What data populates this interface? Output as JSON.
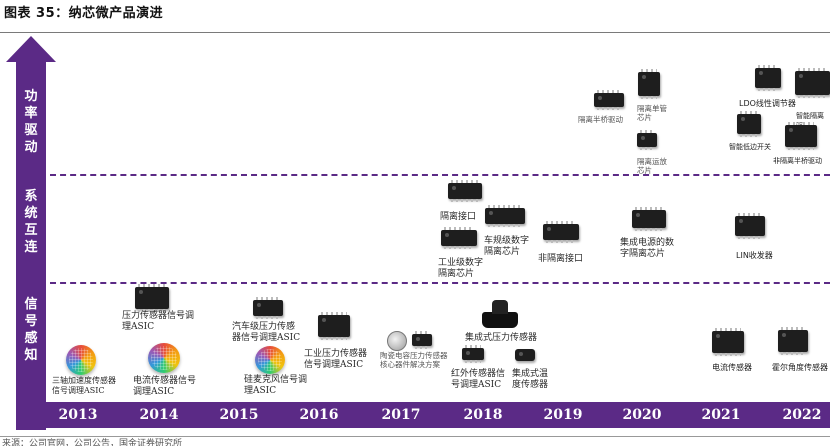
{
  "figure_title": "图表 35：纳芯微产品演进",
  "source_fragment": "来源：公司官网，公司公告，国金证券研究所",
  "tiers": {
    "power": "功率驱动",
    "system": "系统互连",
    "sense": "信号感知"
  },
  "years": [
    "2013",
    "2014",
    "2015",
    "2016",
    "2017",
    "2018",
    "2019",
    "2020",
    "2021",
    "2022"
  ],
  "products": {
    "y2013_accel_asic": "三轴加速度传感器\n信号调理ASIC",
    "y2014_pressure_asic": "压力传感器信号调\n理ASIC",
    "y2014_current_asic": "电流传感器信号\n调理ASIC",
    "y2015_auto_pressure": "汽车级压力传感\n器信号调理ASIC",
    "y2015_mic_asic": "硅麦克风信号调\n理ASIC",
    "y2016_industrial_pressure": "工业压力传感器\n信号调理ASIC",
    "y2017_ceramic_cap": "陶瓷电容压力传感器\n核心器件解决方案",
    "y2018_integrated_pressure": "集成式压力传感器",
    "y2018_infrared": "红外传感器信\n号调理ASIC",
    "y2018_integrated_temp": "集成式温\n度传感器",
    "y2018_isolated_interface": "隔离接口",
    "y2018_auto_digital_iso": "车规级数字\n隔离芯片",
    "y2018_industrial_digital_iso": "工业级数字\n隔离芯片",
    "y2019_non_isolated_interface": "非隔离接口",
    "y2020_integrated_power_digital_iso": "集成电源的数\n字隔离芯片",
    "y2020_half_bridge": "隔离半桥驱动",
    "y2020_single_tube": "隔离单管\n芯片",
    "y2020_isolated_sampling": "隔离运放\n芯片",
    "y2021_lin": "LIN收发器",
    "y2021_current_sensor": "电流传感器",
    "y2021_ldo": "LDO线性调节器",
    "y2021_smart_low_side": "智能低边开关",
    "y2022_smart_iso": "智能隔离驱",
    "y2022_non_iso_half_bridge": "非隔离半桥驱动",
    "y2022_hall_angle": "霍尔角度传感器"
  }
}
